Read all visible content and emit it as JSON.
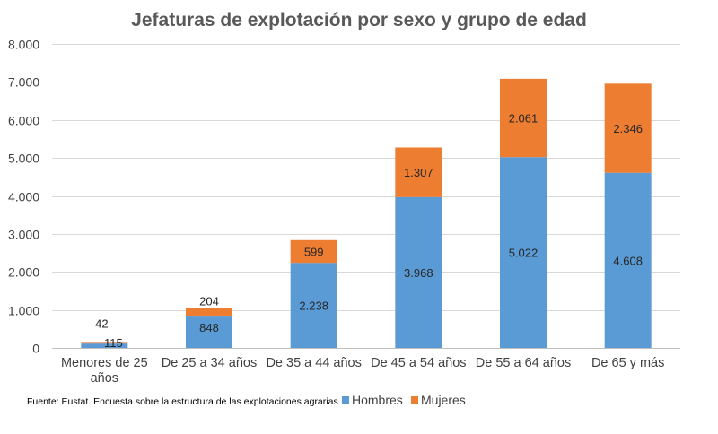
{
  "chart_data": {
    "type": "bar",
    "stacked": true,
    "title": "Jefaturas de explotación por sexo y grupo de edad",
    "categories": [
      [
        "Menores de 25",
        "años"
      ],
      [
        "De 25 a 34 años"
      ],
      [
        "De 35 a 44 años"
      ],
      [
        "De 45 a 54 años"
      ],
      [
        "De 55 a 64 años"
      ],
      [
        "De 65 y más"
      ]
    ],
    "series": [
      {
        "name": "Hombres",
        "color": "#5b9bd5",
        "values": [
          115,
          848,
          2238,
          3968,
          5022,
          4608
        ],
        "labels": [
          "115",
          "848",
          "2.238",
          "3.968",
          "5.022",
          "4.608"
        ]
      },
      {
        "name": "Mujeres",
        "color": "#ed7d31",
        "values": [
          42,
          204,
          599,
          1307,
          2061,
          2346
        ],
        "labels": [
          "42",
          "204",
          "599",
          "1.307",
          "2.061",
          "2.346"
        ]
      }
    ],
    "ylim": [
      0,
      8000
    ],
    "yticks": [
      0,
      1000,
      2000,
      3000,
      4000,
      5000,
      6000,
      7000,
      8000
    ],
    "ytick_labels": [
      "0",
      "1.000",
      "2.000",
      "3.000",
      "4.000",
      "5.000",
      "6.000",
      "7.000",
      "8.000"
    ],
    "xlabel": "",
    "ylabel": "",
    "grid": true,
    "legend_position": "bottom"
  },
  "source_note": "Fuente: Eustat. Encuesta sobre la estructura de las explotaciones agrarias"
}
